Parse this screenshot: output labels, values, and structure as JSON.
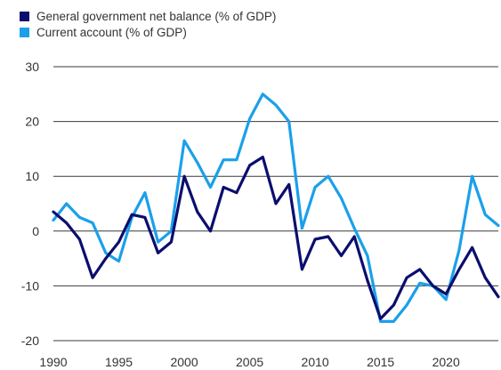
{
  "chart_data": {
    "type": "line",
    "x": [
      1990,
      1991,
      1992,
      1993,
      1994,
      1995,
      1996,
      1997,
      1998,
      1999,
      2000,
      2001,
      2002,
      2003,
      2004,
      2005,
      2006,
      2007,
      2008,
      2009,
      2010,
      2011,
      2012,
      2013,
      2014,
      2015,
      2016,
      2017,
      2018,
      2019,
      2020,
      2021,
      2022,
      2023,
      2024
    ],
    "series": [
      {
        "name": "General government net balance (% of GDP)",
        "color": "#0b0e6e",
        "values": [
          3.5,
          1.5,
          -1.5,
          -8.5,
          -5,
          -2,
          3,
          2.5,
          -4,
          -2,
          10,
          3.5,
          0,
          8,
          7,
          12,
          13.5,
          5,
          8.5,
          -7,
          -1.5,
          -1,
          -4.5,
          -1,
          -9,
          -16,
          -13.5,
          -8.5,
          -7,
          -10,
          -11.5,
          -7,
          -3,
          -8.5,
          -12
        ]
      },
      {
        "name": "Current account (% of GDP)",
        "color": "#1aa0ea",
        "values": [
          2,
          5,
          2.5,
          1.5,
          -4,
          -5.5,
          2.5,
          7,
          -2,
          0,
          16.5,
          12.5,
          8,
          13,
          13,
          20.5,
          25,
          23,
          20,
          0.5,
          8,
          10,
          6,
          0.5,
          -4.5,
          -16.5,
          -16.5,
          -13.5,
          -9.5,
          -10,
          -12.5,
          -3.5,
          10,
          3,
          1
        ]
      }
    ],
    "ylim": [
      -20,
      30
    ],
    "xlim": [
      1990,
      2024
    ],
    "yticks": [
      30,
      20,
      10,
      0,
      -10,
      -20
    ],
    "xticks": [
      1990,
      1995,
      2000,
      2005,
      2010,
      2015,
      2020
    ],
    "grid": "horizontal",
    "legend_position": "top-left",
    "title": "",
    "xlabel": "",
    "ylabel": ""
  }
}
